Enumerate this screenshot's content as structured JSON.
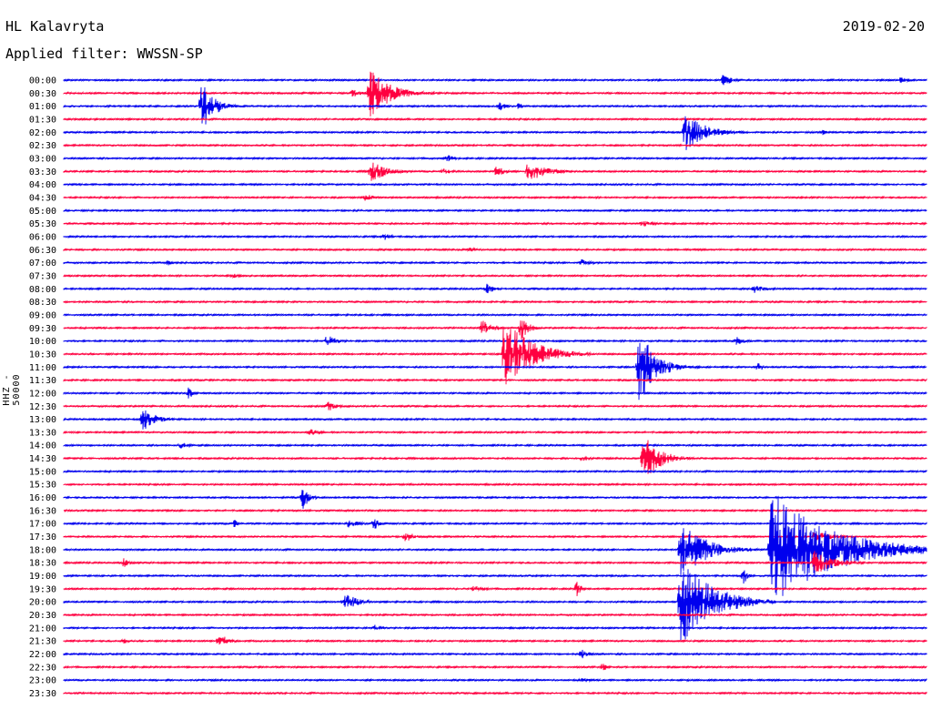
{
  "header": {
    "station": "HL Kalavryta",
    "date": "2019-02-20",
    "filter": "Applied filter: WWSSN-SP"
  },
  "channel_label": "HHZ - 50000",
  "colors": {
    "odd": "#0000ee",
    "even": "#ff0040"
  },
  "chart_data": {
    "type": "line",
    "title": "HL Kalavryta",
    "subtitle": "Applied filter: WWSSN-SP",
    "ylabel": "HHZ - 50000",
    "rows": [
      "00:00",
      "00:30",
      "01:00",
      "01:30",
      "02:00",
      "02:30",
      "03:00",
      "03:30",
      "04:00",
      "04:30",
      "05:00",
      "05:30",
      "06:00",
      "06:30",
      "07:00",
      "07:30",
      "08:00",
      "08:30",
      "09:00",
      "09:30",
      "10:00",
      "10:30",
      "11:00",
      "11:30",
      "12:00",
      "12:30",
      "13:00",
      "13:30",
      "14:00",
      "14:30",
      "15:00",
      "15:30",
      "16:00",
      "16:30",
      "17:00",
      "17:30",
      "18:00",
      "18:30",
      "19:00",
      "19:30",
      "20:00",
      "20:30",
      "21:00",
      "21:30",
      "22:00",
      "22:30",
      "23:00",
      "23:30"
    ],
    "events": [
      {
        "row": 0,
        "x": 0.765,
        "amp": 8,
        "len": 0.02
      },
      {
        "row": 0,
        "x": 0.97,
        "amp": 4,
        "len": 0.02
      },
      {
        "row": 1,
        "x": 0.355,
        "amp": 28,
        "len": 0.05
      },
      {
        "row": 1,
        "x": 0.335,
        "amp": 5,
        "len": 0.02
      },
      {
        "row": 2,
        "x": 0.16,
        "amp": 28,
        "len": 0.03
      },
      {
        "row": 2,
        "x": 0.505,
        "amp": 6,
        "len": 0.015
      },
      {
        "row": 2,
        "x": 0.528,
        "amp": 5,
        "len": 0.01
      },
      {
        "row": 4,
        "x": 0.72,
        "amp": 22,
        "len": 0.05
      },
      {
        "row": 4,
        "x": 0.88,
        "amp": 4,
        "len": 0.01
      },
      {
        "row": 6,
        "x": 0.445,
        "amp": 4,
        "len": 0.02
      },
      {
        "row": 7,
        "x": 0.356,
        "amp": 12,
        "len": 0.04
      },
      {
        "row": 7,
        "x": 0.44,
        "amp": 4,
        "len": 0.02
      },
      {
        "row": 7,
        "x": 0.5,
        "amp": 6,
        "len": 0.03
      },
      {
        "row": 7,
        "x": 0.538,
        "amp": 12,
        "len": 0.045
      },
      {
        "row": 9,
        "x": 0.35,
        "amp": 5,
        "len": 0.02
      },
      {
        "row": 11,
        "x": 0.67,
        "amp": 4,
        "len": 0.03
      },
      {
        "row": 12,
        "x": 0.372,
        "amp": 4,
        "len": 0.02
      },
      {
        "row": 13,
        "x": 0.47,
        "amp": 3,
        "len": 0.03
      },
      {
        "row": 14,
        "x": 0.12,
        "amp": 4,
        "len": 0.01
      },
      {
        "row": 14,
        "x": 0.6,
        "amp": 4,
        "len": 0.03
      },
      {
        "row": 15,
        "x": 0.195,
        "amp": 3,
        "len": 0.02
      },
      {
        "row": 16,
        "x": 0.49,
        "amp": 6,
        "len": 0.02
      },
      {
        "row": 16,
        "x": 0.8,
        "amp": 5,
        "len": 0.03
      },
      {
        "row": 19,
        "x": 0.485,
        "amp": 9,
        "len": 0.03
      },
      {
        "row": 19,
        "x": 0.53,
        "amp": 14,
        "len": 0.02
      },
      {
        "row": 20,
        "x": 0.305,
        "amp": 7,
        "len": 0.025
      },
      {
        "row": 20,
        "x": 0.78,
        "amp": 5,
        "len": 0.02
      },
      {
        "row": 21,
        "x": 0.51,
        "amp": 40,
        "len": 0.07
      },
      {
        "row": 22,
        "x": 0.667,
        "amp": 44,
        "len": 0.04
      },
      {
        "row": 22,
        "x": 0.805,
        "amp": 7,
        "len": 0.01
      },
      {
        "row": 24,
        "x": 0.145,
        "amp": 8,
        "len": 0.01
      },
      {
        "row": 25,
        "x": 0.307,
        "amp": 6,
        "len": 0.02
      },
      {
        "row": 26,
        "x": 0.092,
        "amp": 14,
        "len": 0.03
      },
      {
        "row": 27,
        "x": 0.285,
        "amp": 4,
        "len": 0.03
      },
      {
        "row": 28,
        "x": 0.135,
        "amp": 4,
        "len": 0.02
      },
      {
        "row": 29,
        "x": 0.672,
        "amp": 28,
        "len": 0.04
      },
      {
        "row": 29,
        "x": 0.6,
        "amp": 4,
        "len": 0.02
      },
      {
        "row": 32,
        "x": 0.277,
        "amp": 14,
        "len": 0.015
      },
      {
        "row": 34,
        "x": 0.33,
        "amp": 5,
        "len": 0.03
      },
      {
        "row": 34,
        "x": 0.36,
        "amp": 8,
        "len": 0.01
      },
      {
        "row": 34,
        "x": 0.198,
        "amp": 5,
        "len": 0.005
      },
      {
        "row": 35,
        "x": 0.395,
        "amp": 6,
        "len": 0.03
      },
      {
        "row": 35,
        "x": 0.87,
        "amp": 6,
        "len": 0.05
      },
      {
        "row": 36,
        "x": 0.82,
        "amp": 65,
        "len": 0.15
      },
      {
        "row": 36,
        "x": 0.715,
        "amp": 34,
        "len": 0.06
      },
      {
        "row": 37,
        "x": 0.87,
        "amp": 14,
        "len": 0.05
      },
      {
        "row": 37,
        "x": 0.07,
        "amp": 7,
        "len": 0.01
      },
      {
        "row": 38,
        "x": 0.788,
        "amp": 10,
        "len": 0.01
      },
      {
        "row": 39,
        "x": 0.595,
        "amp": 10,
        "len": 0.01
      },
      {
        "row": 39,
        "x": 0.475,
        "amp": 4,
        "len": 0.03
      },
      {
        "row": 40,
        "x": 0.325,
        "amp": 12,
        "len": 0.03
      },
      {
        "row": 40,
        "x": 0.715,
        "amp": 50,
        "len": 0.08
      },
      {
        "row": 42,
        "x": 0.36,
        "amp": 4,
        "len": 0.02
      },
      {
        "row": 43,
        "x": 0.18,
        "amp": 10,
        "len": 0.02
      },
      {
        "row": 43,
        "x": 0.07,
        "amp": 4,
        "len": 0.01
      },
      {
        "row": 44,
        "x": 0.6,
        "amp": 6,
        "len": 0.02
      },
      {
        "row": 45,
        "x": 0.625,
        "amp": 6,
        "len": 0.005
      },
      {
        "row": 46,
        "x": 0.6,
        "amp": 4,
        "len": 0.02
      }
    ]
  }
}
